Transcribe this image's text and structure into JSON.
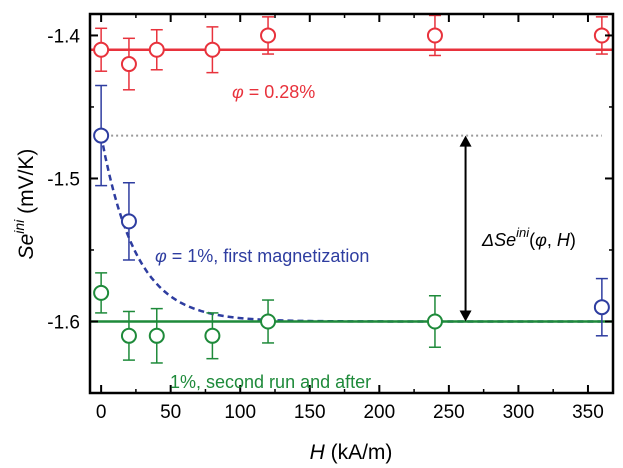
{
  "chart_data": {
    "type": "scatter",
    "xlabel": {
      "var": "H",
      "unit": " (kA/m)"
    },
    "ylabel": {
      "var": "Se",
      "sup": "ini",
      "unit": " (mV/K)"
    },
    "xlim": [
      -8,
      368
    ],
    "ylim": [
      -1.65,
      -1.385
    ],
    "xticks": [
      0,
      50,
      100,
      150,
      200,
      250,
      300,
      350
    ],
    "xtick_labels": [
      "0",
      "50",
      "100",
      "150",
      "200",
      "250",
      "300",
      "350"
    ],
    "yticks": [
      -1.6,
      -1.5,
      -1.4
    ],
    "ytick_labels": [
      "-1.6",
      "-1.5",
      "-1.4"
    ],
    "grid": false,
    "series": [
      {
        "color": "#e8323c",
        "x": [
          0,
          20,
          40,
          80,
          120,
          240,
          360
        ],
        "y": [
          -1.41,
          -1.42,
          -1.41,
          -1.41,
          -1.4,
          -1.4,
          -1.4
        ],
        "err": [
          0.015,
          0.018,
          0.014,
          0.016,
          0.013,
          0.014,
          0.013
        ],
        "fit_line": {
          "type": "constant",
          "y": -1.41,
          "style": "solid"
        }
      },
      {
        "color": "#2e3da0",
        "x": [
          0,
          20,
          360
        ],
        "y": [
          -1.47,
          -1.53,
          -1.59
        ],
        "err": [
          0.035,
          0.027,
          0.02
        ],
        "fit_line": {
          "type": "decay",
          "y0": -1.47,
          "yinf": -1.6,
          "tau": 25,
          "style": "dashed"
        }
      },
      {
        "color": "#1e8a3a",
        "x": [
          0,
          20,
          40,
          80,
          120,
          240
        ],
        "y": [
          -1.58,
          -1.61,
          -1.61,
          -1.61,
          -1.6,
          -1.6
        ],
        "err": [
          0.014,
          0.017,
          0.019,
          0.016,
          0.015,
          0.018
        ],
        "fit_line": {
          "type": "constant",
          "y": -1.6,
          "style": "solid"
        }
      }
    ],
    "reference_line": {
      "y": -1.47,
      "x_from": 0,
      "x_to": 360,
      "color": "#999999",
      "style": "dotted"
    },
    "delta_arrow": {
      "x": 262,
      "y_from": -1.47,
      "y_to": -1.6
    },
    "annotations": {
      "red_label": {
        "pre": "",
        "sym": "φ",
        "post": " = 0.28%",
        "color": "#e8323c"
      },
      "blue_label": {
        "pre": "",
        "sym": "φ",
        "post": " = 1%, first magnetization",
        "color": "#2e3da0"
      },
      "green_label": {
        "text": "1%, second run and after",
        "color": "#1e8a3a"
      },
      "delta_label": {
        "delta": "Δ",
        "var": "Se",
        "sup": "ini",
        "args_open": "(",
        "phi": "φ",
        "sep": ", ",
        "h": "H",
        "args_close": ")",
        "color": "#000000"
      }
    }
  }
}
